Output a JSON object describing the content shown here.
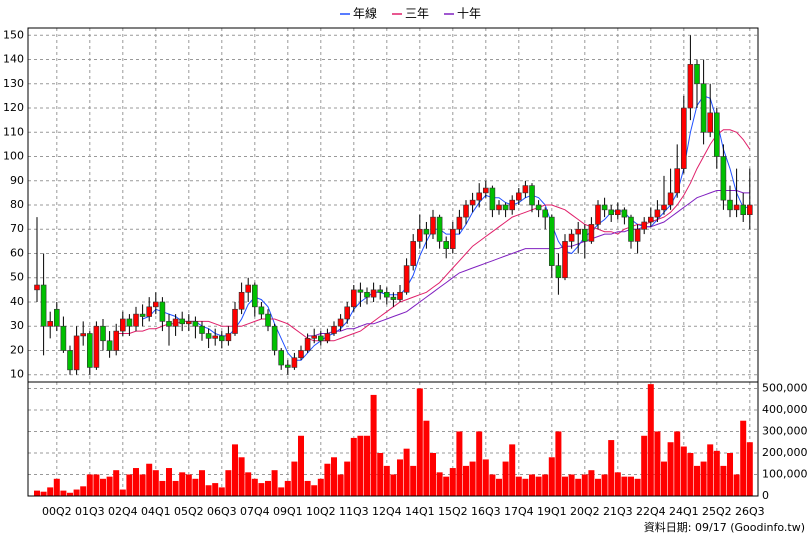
{
  "chart_data": {
    "type": "candlestick",
    "footer": "資料日期: 09/17 (Goodinfo.tw)",
    "categories": [
      null,
      null,
      null,
      "00Q2",
      null,
      null,
      null,
      null,
      "01Q3",
      null,
      null,
      null,
      null,
      "02Q4",
      null,
      null,
      null,
      null,
      "04Q1",
      null,
      null,
      null,
      null,
      "05Q2",
      null,
      null,
      null,
      null,
      "06Q3",
      null,
      null,
      null,
      null,
      "07Q4",
      null,
      null,
      null,
      null,
      "09Q1",
      null,
      null,
      null,
      null,
      "10Q2",
      null,
      null,
      null,
      null,
      "11Q3",
      null,
      null,
      null,
      null,
      "12Q4",
      null,
      null,
      null,
      null,
      "14Q1",
      null,
      null,
      null,
      null,
      "15Q2",
      null,
      null,
      null,
      null,
      "16Q3",
      null,
      null,
      null,
      null,
      "17Q4",
      null,
      null,
      null,
      null,
      "19Q1",
      null,
      null,
      null,
      null,
      "20Q2",
      null,
      null,
      null,
      null,
      "21Q3",
      null,
      null,
      null,
      null,
      "22Q4",
      null,
      null,
      null,
      null,
      "24Q1",
      null,
      null,
      null,
      null,
      "25Q2",
      null,
      null,
      null,
      null,
      "26Q3"
    ],
    "open": [
      45,
      47,
      30,
      37,
      30,
      20,
      12,
      26,
      27,
      13,
      30,
      24,
      20,
      28,
      33,
      30,
      35,
      34,
      38,
      40,
      32,
      30,
      33,
      31,
      32,
      30,
      27,
      25,
      26,
      24,
      27,
      37,
      44,
      47,
      38,
      35,
      30,
      20,
      14,
      13,
      17,
      20,
      25,
      26,
      24,
      27,
      30,
      33,
      38,
      45,
      44,
      42,
      45,
      44,
      42,
      41,
      44,
      55,
      65,
      70,
      68,
      75,
      65,
      62,
      70,
      75,
      80,
      82,
      85,
      87,
      78,
      80,
      78,
      82,
      85,
      88,
      80,
      78,
      75,
      55,
      50,
      65,
      68,
      70,
      65,
      72,
      80,
      78,
      76,
      78,
      75,
      65,
      70,
      73,
      75,
      78,
      80,
      85,
      95,
      120,
      138,
      130,
      110,
      118,
      100,
      82,
      78,
      80,
      76
    ],
    "high": [
      75,
      60,
      36,
      40,
      34,
      22,
      30,
      32,
      28,
      32,
      33,
      28,
      31,
      36,
      35,
      38,
      39,
      42,
      44,
      42,
      35,
      35,
      36,
      35,
      34,
      32,
      29,
      29,
      28,
      30,
      40,
      48,
      50,
      48,
      40,
      37,
      31,
      21,
      16,
      19,
      22,
      27,
      29,
      28,
      29,
      32,
      35,
      40,
      47,
      48,
      46,
      48,
      47,
      46,
      44,
      47,
      58,
      68,
      76,
      73,
      78,
      76,
      67,
      73,
      78,
      82,
      85,
      89,
      90,
      88,
      82,
      81,
      84,
      87,
      90,
      89,
      82,
      79,
      76,
      60,
      68,
      70,
      73,
      72,
      75,
      82,
      83,
      80,
      81,
      79,
      76,
      72,
      75,
      79,
      82,
      92,
      95,
      105,
      125,
      150,
      140,
      140,
      130,
      120,
      105,
      88,
      95,
      85,
      95
    ],
    "low": [
      40,
      18,
      25,
      28,
      19,
      10,
      10,
      22,
      10,
      12,
      20,
      17,
      18,
      26,
      26,
      28,
      30,
      32,
      35,
      28,
      22,
      26,
      28,
      28,
      25,
      24,
      21,
      22,
      21,
      22,
      26,
      35,
      40,
      34,
      33,
      28,
      18,
      12,
      10,
      12,
      16,
      19,
      23,
      22,
      23,
      26,
      28,
      31,
      36,
      38,
      39,
      40,
      41,
      39,
      38,
      40,
      43,
      53,
      62,
      62,
      66,
      62,
      58,
      60,
      68,
      72,
      77,
      79,
      83,
      75,
      76,
      75,
      76,
      80,
      83,
      77,
      75,
      70,
      50,
      43,
      49,
      62,
      60,
      58,
      64,
      70,
      75,
      73,
      74,
      72,
      62,
      60,
      68,
      71,
      73,
      76,
      78,
      83,
      93,
      115,
      120,
      105,
      108,
      95,
      78,
      75,
      75,
      73,
      70
    ],
    "close": [
      47,
      30,
      32,
      30,
      20,
      12,
      26,
      27,
      13,
      30,
      24,
      20,
      28,
      33,
      30,
      35,
      34,
      38,
      40,
      32,
      30,
      33,
      31,
      32,
      30,
      27,
      25,
      26,
      24,
      27,
      37,
      44,
      47,
      38,
      35,
      30,
      20,
      14,
      13,
      17,
      20,
      25,
      26,
      24,
      27,
      30,
      33,
      38,
      45,
      44,
      42,
      45,
      44,
      42,
      41,
      44,
      55,
      65,
      70,
      68,
      75,
      65,
      62,
      70,
      75,
      80,
      82,
      85,
      87,
      78,
      80,
      78,
      82,
      85,
      88,
      80,
      78,
      75,
      55,
      50,
      65,
      68,
      70,
      65,
      72,
      80,
      78,
      76,
      78,
      75,
      65,
      70,
      73,
      75,
      78,
      80,
      85,
      95,
      120,
      138,
      130,
      110,
      118,
      100,
      82,
      78,
      80,
      76,
      80
    ],
    "up_color": "#ff0000",
    "down_color": "#00c000",
    "series": [
      {
        "name": "年線",
        "color": "#2050ff",
        "values": [
          null,
          null,
          null,
          null,
          null,
          null,
          null,
          null,
          null,
          null,
          null,
          null,
          null,
          null,
          null,
          null,
          33,
          34,
          37,
          36,
          35,
          34,
          32,
          32,
          32,
          30,
          29,
          27,
          26,
          26,
          29,
          33,
          39,
          42,
          41,
          38,
          31,
          25,
          19,
          16,
          16,
          19,
          22,
          24,
          26,
          27,
          29,
          32,
          37,
          40,
          42,
          44,
          44,
          43,
          43,
          43,
          46,
          51,
          59,
          65,
          70,
          70,
          68,
          68,
          68,
          72,
          77,
          81,
          84,
          83,
          83,
          81,
          80,
          81,
          83,
          84,
          83,
          80,
          72,
          65,
          61,
          60,
          63,
          67,
          69,
          72,
          74,
          77,
          78,
          77,
          74,
          72,
          71,
          71,
          74,
          77,
          80,
          85,
          95,
          110,
          121,
          125,
          124,
          115,
          103,
          95,
          85,
          79,
          79
        ]
      },
      {
        "name": "三年",
        "color": "#e0206a",
        "values": [
          null,
          null,
          null,
          null,
          null,
          null,
          null,
          null,
          null,
          null,
          null,
          null,
          27,
          27,
          27,
          28,
          28,
          29,
          29,
          30,
          31,
          31,
          32,
          32,
          32,
          32,
          32,
          31,
          30,
          30,
          30,
          30,
          31,
          32,
          33,
          33,
          33,
          32,
          31,
          29,
          27,
          25,
          24,
          24,
          24,
          24,
          25,
          26,
          27,
          28,
          30,
          32,
          34,
          36,
          38,
          40,
          41,
          42,
          43,
          44,
          46,
          48,
          51,
          54,
          57,
          60,
          63,
          65,
          67,
          69,
          71,
          73,
          75,
          76,
          77,
          78,
          79,
          80,
          80,
          79,
          78,
          76,
          74,
          72,
          71,
          70,
          69,
          69,
          68,
          70,
          71,
          72,
          72,
          73,
          74,
          75,
          77,
          80,
          84,
          89,
          95,
          100,
          105,
          109,
          111,
          111,
          110,
          107,
          103
        ]
      },
      {
        "name": "十年",
        "color": "#8020c0",
        "values": [
          null,
          null,
          null,
          null,
          null,
          null,
          null,
          null,
          null,
          null,
          null,
          null,
          null,
          null,
          null,
          null,
          null,
          null,
          null,
          null,
          null,
          null,
          null,
          null,
          null,
          null,
          null,
          null,
          null,
          null,
          null,
          null,
          null,
          null,
          null,
          null,
          null,
          null,
          null,
          null,
          null,
          26,
          26,
          27,
          27,
          28,
          28,
          29,
          29,
          30,
          31,
          31,
          32,
          33,
          34,
          35,
          36,
          38,
          40,
          42,
          44,
          46,
          48,
          50,
          52,
          53,
          54,
          55,
          56,
          57,
          58,
          59,
          60,
          61,
          62,
          62,
          62,
          62,
          62,
          62,
          63,
          63,
          64,
          65,
          66,
          67,
          68,
          68,
          69,
          69,
          70,
          70,
          71,
          71,
          72,
          73,
          75,
          77,
          79,
          81,
          83,
          84,
          85,
          86,
          86,
          86,
          86,
          85,
          85
        ]
      }
    ],
    "ylim": [
      7,
      153
    ],
    "yticks": [
      10,
      20,
      30,
      40,
      50,
      60,
      70,
      80,
      90,
      100,
      110,
      120,
      130,
      140,
      150
    ],
    "grid": true,
    "volume": {
      "color": "#ff0000",
      "values": [
        25000,
        20000,
        40000,
        80000,
        25000,
        15000,
        30000,
        45000,
        100000,
        100000,
        80000,
        90000,
        120000,
        30000,
        100000,
        130000,
        100000,
        150000,
        120000,
        70000,
        130000,
        70000,
        110000,
        100000,
        80000,
        120000,
        50000,
        60000,
        40000,
        120000,
        240000,
        180000,
        110000,
        80000,
        60000,
        70000,
        120000,
        40000,
        70000,
        160000,
        280000,
        70000,
        50000,
        80000,
        150000,
        180000,
        100000,
        160000,
        270000,
        280000,
        280000,
        470000,
        200000,
        140000,
        100000,
        170000,
        220000,
        140000,
        500000,
        350000,
        200000,
        110000,
        90000,
        130000,
        300000,
        140000,
        160000,
        300000,
        170000,
        100000,
        80000,
        160000,
        240000,
        90000,
        80000,
        100000,
        90000,
        100000,
        180000,
        300000,
        90000,
        100000,
        80000,
        100000,
        120000,
        80000,
        100000,
        260000,
        110000,
        90000,
        90000,
        80000,
        280000,
        520000,
        300000,
        160000,
        250000,
        300000,
        230000,
        200000,
        140000,
        160000,
        240000,
        210000,
        140000,
        200000,
        100000,
        350000,
        250000
      ],
      "ylim": [
        0,
        530000
      ],
      "yticks": [
        0,
        {
          "value": 100000,
          "label": "100,000"
        },
        {
          "value": 200000,
          "label": "200,000"
        },
        {
          "value": 300000,
          "label": "300,000"
        },
        {
          "value": 400000,
          "label": "400,000"
        },
        {
          "value": 500000,
          "label": "500,000"
        }
      ]
    }
  }
}
